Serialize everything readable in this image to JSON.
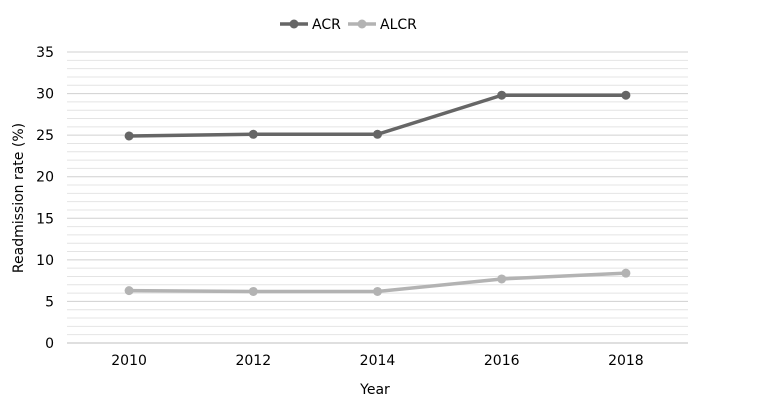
{
  "chart_data": {
    "type": "line",
    "title": "",
    "xlabel": "Year",
    "ylabel": "Readmission rate (%)",
    "categories": [
      "2010",
      "2012",
      "2014",
      "2016",
      "2018"
    ],
    "y_ticks": [
      "0",
      "5",
      "10",
      "15",
      "20",
      "25",
      "30",
      "35"
    ],
    "ylim": [
      0,
      35
    ],
    "grid": true,
    "legend_position": "top",
    "series": [
      {
        "name": "ACR",
        "color": "#666666",
        "values": [
          24.9,
          25.1,
          25.1,
          29.8,
          29.8
        ]
      },
      {
        "name": "ALCR",
        "color": "#b3b3b3",
        "values": [
          6.3,
          6.2,
          6.2,
          7.7,
          8.4
        ]
      }
    ]
  }
}
